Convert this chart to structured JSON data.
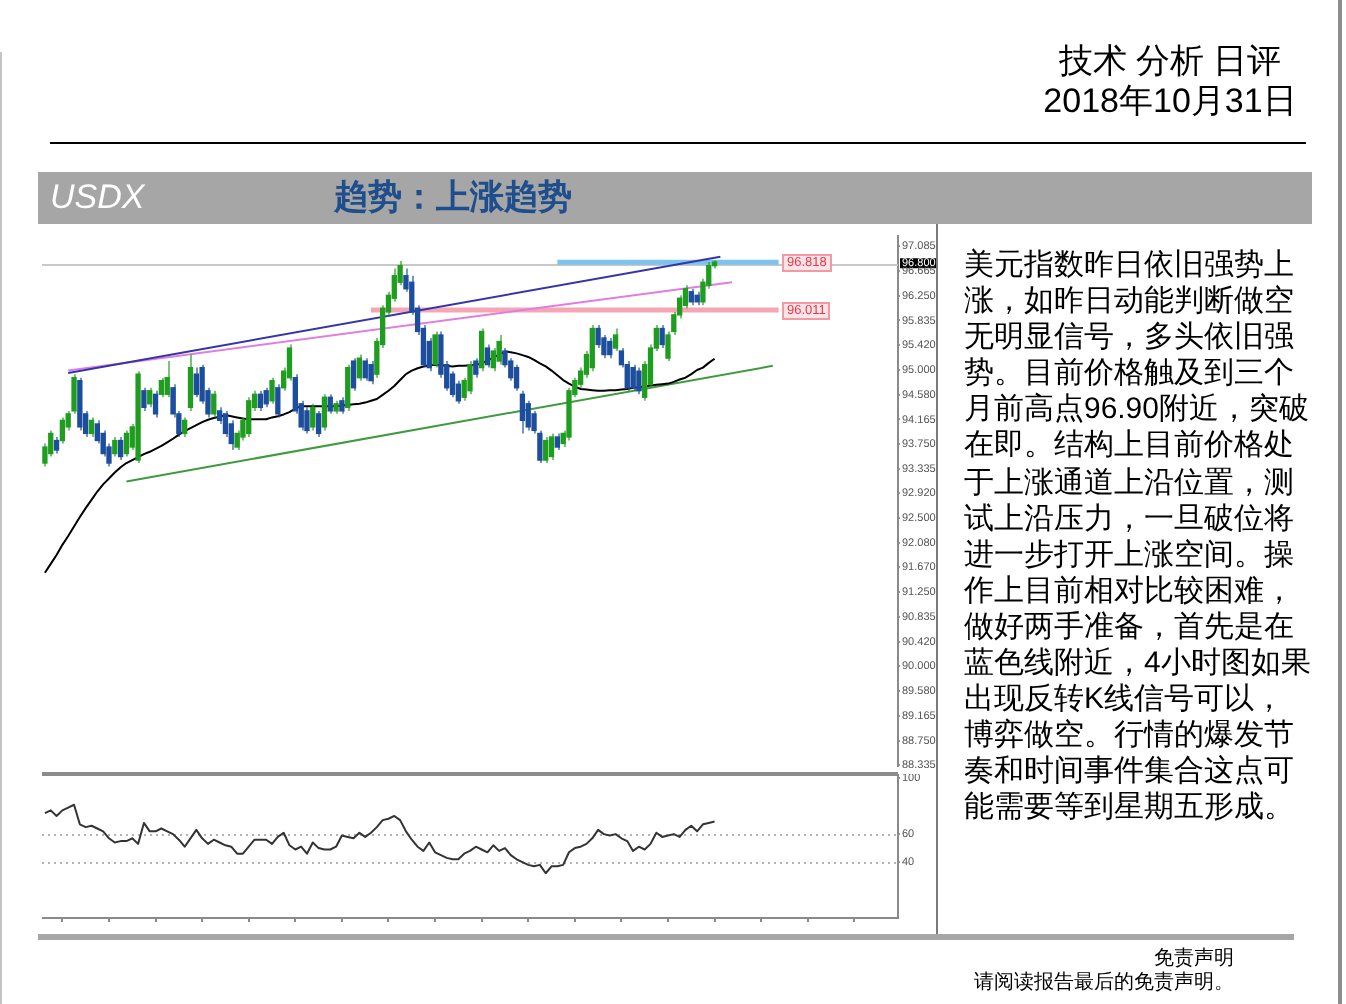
{
  "chart_data": [
    {
      "type": "candlestick",
      "title": "USDX",
      "subtitle": "趋势：上涨趋势",
      "annotations": [
        "技术 分析 日评",
        "2018年10月31日",
        "美元指数昨日依旧强势上涨，如昨日动能判断做空无明显信号，多头依旧强势。目前价格触及到三个月前高点96.90附近，突破在即。结构上目前价格处于上涨通道上沿位置，测试上沿压力，一旦破位将进一步打开上涨空间。操作上目前相对比较困难，做好两手准备，首先是在蓝色线附近，4小时图如果出现反转K线信号可以，博弈做空。行情的爆发节奏和时间事件集合这点可能需要等到星期五形成。",
        "免责声明",
        "请阅读报告最后的免责声明。",
        {
          "text": "96.818",
          "y": 96.818
        },
        {
          "text": "96.011",
          "y": 96.011
        }
      ],
      "categories": [
        null,
        null,
        null,
        null,
        null,
        null,
        null,
        null,
        null,
        null,
        null,
        null,
        null,
        null,
        null,
        null,
        null,
        null,
        null,
        null,
        null,
        null,
        null,
        null,
        null,
        null,
        null,
        null,
        null,
        null,
        null,
        null,
        null,
        null,
        null,
        null,
        null,
        null,
        null,
        null,
        null,
        null,
        null,
        null,
        null,
        null,
        null,
        null,
        null,
        null,
        null,
        null,
        null,
        null,
        null,
        null,
        null,
        null,
        null,
        null,
        null,
        null,
        null,
        null,
        null,
        null,
        null,
        null,
        null,
        null,
        null,
        null,
        null,
        null,
        null,
        null,
        null,
        null,
        null,
        null,
        null,
        null,
        null,
        null,
        null,
        null,
        null,
        null,
        null,
        null,
        null,
        null,
        null,
        null,
        null,
        null,
        null,
        null,
        null,
        null,
        null,
        null,
        null,
        null,
        null,
        null,
        null,
        null,
        null,
        null,
        null,
        null,
        null,
        null,
        null,
        null,
        null,
        null,
        null,
        null,
        null,
        null,
        null,
        null,
        null,
        null,
        null,
        null,
        null,
        null,
        null,
        null,
        null,
        null,
        null,
        null,
        null,
        null,
        null,
        null,
        null,
        null,
        null,
        null,
        null,
        null,
        null
      ],
      "ohlc": [
        [
          93.43,
          93.76,
          93.37,
          93.7
        ],
        [
          93.59,
          93.98,
          93.54,
          93.93
        ],
        [
          93.81,
          93.87,
          93.59,
          93.65
        ],
        [
          93.81,
          94.2,
          93.76,
          94.15
        ],
        [
          94.04,
          94.31,
          93.98,
          94.26
        ],
        [
          94.31,
          94.93,
          94.26,
          94.87
        ],
        [
          94.82,
          94.87,
          93.98,
          94.04
        ],
        [
          94.26,
          94.31,
          93.87,
          93.93
        ],
        [
          93.93,
          94.2,
          93.87,
          94.15
        ],
        [
          94.09,
          94.15,
          93.76,
          93.81
        ],
        [
          93.93,
          93.98,
          93.54,
          93.59
        ],
        [
          93.7,
          93.76,
          93.37,
          93.43
        ],
        [
          93.59,
          93.87,
          93.54,
          93.81
        ],
        [
          93.81,
          93.87,
          93.48,
          93.54
        ],
        [
          93.59,
          93.98,
          93.54,
          93.93
        ],
        [
          93.7,
          94.09,
          93.65,
          94.04
        ],
        [
          93.48,
          94.98,
          93.43,
          94.93
        ],
        [
          94.65,
          94.7,
          94.31,
          94.37
        ],
        [
          94.43,
          94.7,
          94.37,
          94.65
        ],
        [
          94.59,
          94.65,
          94.2,
          94.26
        ],
        [
          94.59,
          94.87,
          94.54,
          94.82
        ],
        [
          94.59,
          95.15,
          94.54,
          94.87
        ],
        [
          94.7,
          94.76,
          94.2,
          94.26
        ],
        [
          94.26,
          94.31,
          93.87,
          93.93
        ],
        [
          93.93,
          94.2,
          93.87,
          94.15
        ],
        [
          94.37,
          95.26,
          94.31,
          95.04
        ],
        [
          94.93,
          95.04,
          94.54,
          94.59
        ],
        [
          95.04,
          95.09,
          94.43,
          94.48
        ],
        [
          94.65,
          94.7,
          94.2,
          94.26
        ],
        [
          94.26,
          94.65,
          94.2,
          94.59
        ],
        [
          94.31,
          94.37,
          94.09,
          94.15
        ],
        [
          94.26,
          94.31,
          93.87,
          93.93
        ],
        [
          94.09,
          94.15,
          93.65,
          93.76
        ],
        [
          93.7,
          93.98,
          93.65,
          93.93
        ],
        [
          93.87,
          94.2,
          93.81,
          94.15
        ],
        [
          93.93,
          94.54,
          93.87,
          94.48
        ],
        [
          94.37,
          94.65,
          94.31,
          94.59
        ],
        [
          94.59,
          94.65,
          94.31,
          94.37
        ],
        [
          94.65,
          94.7,
          94.37,
          94.43
        ],
        [
          94.48,
          94.87,
          94.43,
          94.82
        ],
        [
          94.7,
          94.76,
          94.2,
          94.26
        ],
        [
          94.7,
          95.04,
          94.65,
          94.98
        ],
        [
          94.87,
          95.43,
          94.82,
          95.37
        ],
        [
          94.87,
          94.93,
          94.26,
          94.31
        ],
        [
          94.43,
          94.48,
          93.98,
          94.04
        ],
        [
          94.31,
          94.37,
          93.93,
          93.98
        ],
        [
          94.04,
          94.43,
          93.98,
          94.37
        ],
        [
          94.26,
          94.31,
          93.87,
          93.93
        ],
        [
          94.04,
          94.59,
          93.98,
          94.54
        ],
        [
          94.54,
          94.59,
          94.26,
          94.31
        ],
        [
          94.31,
          94.48,
          94.26,
          94.43
        ],
        [
          94.48,
          94.54,
          94.26,
          94.31
        ],
        [
          94.37,
          95.09,
          94.31,
          95.04
        ],
        [
          95.15,
          95.2,
          94.65,
          94.7
        ],
        [
          94.87,
          95.26,
          94.82,
          95.2
        ],
        [
          95.15,
          95.2,
          94.82,
          94.87
        ],
        [
          95.09,
          95.15,
          94.76,
          94.82
        ],
        [
          94.93,
          95.54,
          94.87,
          95.48
        ],
        [
          95.43,
          96.09,
          95.37,
          96.04
        ],
        [
          95.98,
          96.32,
          95.93,
          96.26
        ],
        [
          96.21,
          96.71,
          96.15,
          96.59
        ],
        [
          96.48,
          96.84,
          96.43,
          96.76
        ],
        [
          96.59,
          96.71,
          96.32,
          96.37
        ],
        [
          96.48,
          96.59,
          95.93,
          95.98
        ],
        [
          96.04,
          96.09,
          95.59,
          95.65
        ],
        [
          95.7,
          95.76,
          95.04,
          95.09
        ],
        [
          95.48,
          95.54,
          94.98,
          95.04
        ],
        [
          95.09,
          95.65,
          95.04,
          95.59
        ],
        [
          95.59,
          95.65,
          94.87,
          94.93
        ],
        [
          95.09,
          95.15,
          94.65,
          94.7
        ],
        [
          94.93,
          94.98,
          94.54,
          94.59
        ],
        [
          94.76,
          94.82,
          94.43,
          94.48
        ],
        [
          94.54,
          94.87,
          94.48,
          94.82
        ],
        [
          94.65,
          95.15,
          94.59,
          95.09
        ],
        [
          95.15,
          95.2,
          94.87,
          94.93
        ],
        [
          95.04,
          95.7,
          94.98,
          95.65
        ],
        [
          95.37,
          95.43,
          95.04,
          95.09
        ],
        [
          95.04,
          95.37,
          94.98,
          95.32
        ],
        [
          95.15,
          95.59,
          95.09,
          95.48
        ],
        [
          95.32,
          95.37,
          95.04,
          95.09
        ],
        [
          95.15,
          95.2,
          94.82,
          94.87
        ],
        [
          95.04,
          95.09,
          94.65,
          94.7
        ],
        [
          94.59,
          94.65,
          93.93,
          94.15
        ],
        [
          94.43,
          94.48,
          93.98,
          94.04
        ],
        [
          94.26,
          94.31,
          93.93,
          93.98
        ],
        [
          93.93,
          93.98,
          93.43,
          93.48
        ],
        [
          93.48,
          93.87,
          93.43,
          93.81
        ],
        [
          93.54,
          93.93,
          93.48,
          93.87
        ],
        [
          93.87,
          93.93,
          93.65,
          93.7
        ],
        [
          93.76,
          93.98,
          93.7,
          93.93
        ],
        [
          93.87,
          94.7,
          93.81,
          94.65
        ],
        [
          94.59,
          94.87,
          94.54,
          94.82
        ],
        [
          94.76,
          95.04,
          94.7,
          94.98
        ],
        [
          94.93,
          95.32,
          94.87,
          95.26
        ],
        [
          95.04,
          95.76,
          94.98,
          95.7
        ],
        [
          95.7,
          95.76,
          95.37,
          95.43
        ],
        [
          95.54,
          95.59,
          95.2,
          95.26
        ],
        [
          95.48,
          95.54,
          95.2,
          95.26
        ],
        [
          95.37,
          95.7,
          95.32,
          95.59
        ],
        [
          95.32,
          95.37,
          95.04,
          95.09
        ],
        [
          95.09,
          95.15,
          94.65,
          94.7
        ],
        [
          95.04,
          95.09,
          94.65,
          94.7
        ],
        [
          94.98,
          95.04,
          94.59,
          94.65
        ],
        [
          94.54,
          95.15,
          94.48,
          95.09
        ],
        [
          94.76,
          95.43,
          94.7,
          95.37
        ],
        [
          95.37,
          95.76,
          95.32,
          95.7
        ],
        [
          95.7,
          95.76,
          95.37,
          95.43
        ],
        [
          95.2,
          95.65,
          95.15,
          95.59
        ],
        [
          95.65,
          95.98,
          95.59,
          95.93
        ],
        [
          95.93,
          96.26,
          95.87,
          96.21
        ],
        [
          96.09,
          96.43,
          96.04,
          96.37
        ],
        [
          96.32,
          96.37,
          96.09,
          96.15
        ],
        [
          96.26,
          96.32,
          96.09,
          96.15
        ],
        [
          96.15,
          96.54,
          96.09,
          96.48
        ],
        [
          96.43,
          96.82,
          96.37,
          96.76
        ],
        [
          96.76,
          96.85,
          96.71,
          96.82
        ],
        null,
        null,
        null,
        null,
        null,
        null,
        null,
        null,
        null,
        null,
        null,
        null,
        null,
        null,
        null,
        null,
        null,
        null,
        null,
        null,
        null,
        null,
        null,
        null,
        null,
        null,
        null,
        null,
        null,
        null,
        null
      ],
      "colors": [
        "#1f9d1f",
        "#1f9d1f",
        "#1d4e9e",
        "#1f9d1f",
        "#1f9d1f",
        "#1f9d1f",
        "#1d4e9e",
        "#1d4e9e",
        "#1f9d1f",
        "#1d4e9e",
        "#1d4e9e",
        "#1d4e9e",
        "#1f9d1f",
        "#1d4e9e",
        "#1f9d1f",
        "#1f9d1f",
        "#1f9d1f",
        "#1d4e9e",
        "#1f9d1f",
        "#1d4e9e",
        "#1f9d1f",
        "#1f9d1f",
        "#1d4e9e",
        "#1d4e9e",
        "#1f9d1f",
        "#1f9d1f",
        "#1d4e9e",
        "#1d4e9e",
        "#1d4e9e",
        "#1f9d1f",
        "#1d4e9e",
        "#1d4e9e",
        "#1d4e9e",
        "#1f9d1f",
        "#1f9d1f",
        "#1f9d1f",
        "#1f9d1f",
        "#1d4e9e",
        "#1d4e9e",
        "#1f9d1f",
        "#1d4e9e",
        "#1f9d1f",
        "#1f9d1f",
        "#1d4e9e",
        "#1d4e9e",
        "#1d4e9e",
        "#1f9d1f",
        "#1d4e9e",
        "#1f9d1f",
        "#1d4e9e",
        "#1f9d1f",
        "#1d4e9e",
        "#1f9d1f",
        "#1d4e9e",
        "#1f9d1f",
        "#1d4e9e",
        "#1d4e9e",
        "#1f9d1f",
        "#1f9d1f",
        "#1f9d1f",
        "#1f9d1f",
        "#1f9d1f",
        "#1d4e9e",
        "#1d4e9e",
        "#1d4e9e",
        "#1d4e9e",
        "#1d4e9e",
        "#1f9d1f",
        "#1d4e9e",
        "#1d4e9e",
        "#1d4e9e",
        "#1d4e9e",
        "#1f9d1f",
        "#1f9d1f",
        "#1d4e9e",
        "#1f9d1f",
        "#1d4e9e",
        "#1f9d1f",
        "#1f9d1f",
        "#1d4e9e",
        "#1d4e9e",
        "#1d4e9e",
        "#1d4e9e",
        "#1d4e9e",
        "#1d4e9e",
        "#1d4e9e",
        "#1f9d1f",
        "#1f9d1f",
        "#1d4e9e",
        "#1f9d1f",
        "#1f9d1f",
        "#1f9d1f",
        "#1f9d1f",
        "#1f9d1f",
        "#1f9d1f",
        "#1d4e9e",
        "#1d4e9e",
        "#1d4e9e",
        "#1f9d1f",
        "#1d4e9e",
        "#1d4e9e",
        "#1d4e9e",
        "#1d4e9e",
        "#1f9d1f",
        "#1f9d1f",
        "#1f9d1f",
        "#1d4e9e",
        "#1f9d1f",
        "#1f9d1f",
        "#1f9d1f",
        "#1f9d1f",
        "#1d4e9e",
        "#1d4e9e",
        "#1f9d1f",
        "#1f9d1f",
        "#1f9d1f",
        null,
        null,
        null,
        null,
        null,
        null,
        null,
        null,
        null,
        null,
        null,
        null,
        null,
        null,
        null,
        null,
        null,
        null,
        null,
        null,
        null,
        null,
        null,
        null,
        null,
        null,
        null,
        null,
        null,
        null,
        null
      ],
      "series": [
        {
          "type": "line",
          "color": "#000000",
          "values": [
            91.58,
            91.73,
            91.88,
            92.05,
            92.2,
            92.36,
            92.52,
            92.67,
            92.81,
            92.95,
            93.07,
            93.17,
            93.27,
            93.36,
            93.43,
            93.48,
            93.53,
            93.58,
            93.62,
            93.67,
            93.72,
            93.78,
            93.84,
            93.91,
            93.97,
            94.02,
            94.07,
            94.12,
            94.16,
            94.19,
            94.21,
            94.24,
            94.22,
            94.2,
            94.18,
            94.17,
            94.17,
            94.17,
            94.17,
            94.2,
            94.22,
            94.25,
            94.29,
            94.35,
            94.39,
            94.39,
            94.39,
            94.39,
            94.39,
            94.39,
            94.39,
            94.4,
            94.41,
            94.42,
            94.43,
            94.45,
            94.48,
            94.51,
            94.58,
            94.65,
            94.73,
            94.83,
            94.93,
            94.99,
            95.03,
            95.06,
            95.08,
            95.09,
            95.08,
            95.07,
            95.06,
            95.07,
            95.07,
            95.08,
            95.09,
            95.11,
            95.16,
            95.21,
            95.26,
            95.31,
            95.3,
            95.28,
            95.25,
            95.22,
            95.17,
            95.11,
            95.06,
            94.99,
            94.91,
            94.83,
            94.77,
            94.72,
            94.68,
            94.67,
            94.66,
            94.65,
            94.65,
            94.66,
            94.66,
            94.67,
            94.68,
            94.7,
            94.71,
            94.72,
            94.74,
            94.75,
            94.76,
            94.77,
            94.8,
            94.84,
            94.87,
            94.93,
            95.0,
            95.04,
            95.12,
            95.19,
            null,
            null,
            null,
            null,
            null,
            null,
            null,
            null,
            null,
            null,
            null,
            null,
            null,
            null,
            null,
            null,
            null,
            null,
            null,
            null,
            null,
            null,
            null,
            null,
            null,
            null,
            null,
            null,
            null,
            null,
            null
          ]
        },
        {
          "type": "line",
          "color": "#3535a8",
          "values": [
            null,
            null,
            null,
            null,
            94.95,
            null,
            null,
            null,
            null,
            null,
            null,
            null,
            null,
            null,
            null,
            null,
            null,
            null,
            null,
            null,
            null,
            null,
            null,
            null,
            null,
            null,
            null,
            null,
            null,
            null,
            null,
            null,
            null,
            null,
            null,
            null,
            null,
            null,
            null,
            null,
            null,
            null,
            null,
            null,
            null,
            null,
            null,
            null,
            null,
            null,
            null,
            null,
            null,
            null,
            null,
            null,
            null,
            null,
            null,
            null,
            null,
            null,
            null,
            null,
            null,
            null,
            null,
            null,
            null,
            null,
            null,
            null,
            null,
            null,
            null,
            null,
            null,
            null,
            null,
            null,
            null,
            null,
            null,
            null,
            null,
            null,
            null,
            null,
            null,
            null,
            null,
            null,
            null,
            null,
            null,
            null,
            null,
            null,
            null,
            null,
            null,
            null,
            null,
            null,
            null,
            null,
            null,
            null,
            null,
            null,
            null,
            null,
            null,
            null,
            null,
            null,
            96.91,
            null,
            null,
            null,
            null,
            null,
            null,
            null,
            null,
            null,
            null,
            null,
            null,
            null,
            null,
            null,
            null,
            null,
            null,
            null,
            null,
            null,
            null,
            null,
            null,
            null,
            null,
            null,
            null,
            null,
            null
          ]
        },
        {
          "type": "line",
          "color": "#e07ee0",
          "values": [
            null,
            null,
            null,
            null,
            94.99,
            null,
            null,
            null,
            null,
            null,
            null,
            null,
            null,
            null,
            null,
            null,
            null,
            null,
            null,
            null,
            null,
            null,
            null,
            null,
            null,
            null,
            null,
            null,
            null,
            null,
            null,
            null,
            null,
            null,
            null,
            null,
            null,
            null,
            null,
            null,
            null,
            null,
            null,
            null,
            null,
            null,
            null,
            null,
            null,
            null,
            null,
            null,
            null,
            null,
            null,
            null,
            null,
            null,
            null,
            null,
            null,
            null,
            null,
            null,
            null,
            null,
            null,
            null,
            null,
            null,
            null,
            null,
            null,
            null,
            null,
            null,
            null,
            null,
            null,
            null,
            null,
            null,
            null,
            null,
            null,
            null,
            null,
            null,
            null,
            null,
            null,
            null,
            null,
            null,
            null,
            null,
            null,
            null,
            null,
            null,
            null,
            null,
            null,
            null,
            null,
            null,
            null,
            null,
            null,
            null,
            null,
            null,
            null,
            null,
            null,
            null,
            null,
            null,
            96.48,
            null,
            null,
            null,
            null,
            null,
            null,
            null,
            null,
            null,
            null,
            null,
            null,
            null,
            null,
            null,
            null,
            null,
            null,
            null,
            null,
            null,
            null,
            null,
            null,
            null,
            null,
            null,
            null
          ]
        },
        {
          "type": "line",
          "color": "#3d9b3d",
          "values": [
            null,
            null,
            null,
            null,
            null,
            null,
            null,
            null,
            null,
            null,
            null,
            null,
            null,
            null,
            93.12,
            null,
            null,
            null,
            null,
            null,
            null,
            null,
            null,
            null,
            null,
            null,
            null,
            null,
            null,
            null,
            null,
            null,
            null,
            null,
            null,
            null,
            null,
            null,
            null,
            null,
            null,
            null,
            null,
            null,
            null,
            null,
            null,
            null,
            null,
            null,
            null,
            null,
            null,
            null,
            null,
            null,
            null,
            null,
            null,
            null,
            null,
            null,
            null,
            null,
            null,
            null,
            null,
            null,
            null,
            null,
            null,
            null,
            null,
            null,
            null,
            null,
            null,
            null,
            null,
            null,
            null,
            null,
            null,
            null,
            null,
            null,
            null,
            null,
            null,
            null,
            null,
            null,
            null,
            null,
            null,
            null,
            null,
            null,
            null,
            null,
            null,
            null,
            null,
            null,
            null,
            null,
            null,
            null,
            null,
            null,
            null,
            null,
            null,
            null,
            null,
            null,
            null,
            null,
            null,
            null,
            null,
            null,
            null,
            null,
            null,
            95.07,
            null,
            null,
            null,
            null,
            null,
            null,
            null,
            null,
            null,
            null,
            null,
            null,
            null,
            null,
            null,
            null,
            null,
            null,
            null,
            null,
            null
          ]
        },
        {
          "type": "line",
          "color": "#7cc3ef",
          "values": [
            null,
            null,
            null,
            null,
            null,
            null,
            null,
            null,
            null,
            null,
            null,
            null,
            null,
            null,
            null,
            null,
            null,
            null,
            null,
            null,
            null,
            null,
            null,
            null,
            null,
            null,
            null,
            null,
            null,
            null,
            null,
            null,
            null,
            null,
            null,
            null,
            null,
            null,
            null,
            null,
            null,
            null,
            null,
            null,
            null,
            null,
            null,
            null,
            null,
            null,
            null,
            null,
            null,
            null,
            null,
            null,
            null,
            null,
            null,
            null,
            null,
            null,
            null,
            null,
            null,
            null,
            null,
            null,
            null,
            null,
            null,
            null,
            null,
            null,
            null,
            null,
            null,
            null,
            null,
            null,
            null,
            null,
            null,
            null,
            null,
            null,
            null,
            null,
            96.818,
            null,
            null,
            null,
            null,
            null,
            null,
            null,
            null,
            null,
            null,
            null,
            null,
            null,
            null,
            null,
            null,
            null,
            null,
            null,
            null,
            null,
            null,
            null,
            null,
            null,
            null,
            null,
            null,
            null,
            null,
            null,
            null,
            null,
            null,
            null,
            null,
            null,
            96.818,
            null,
            null,
            null,
            null,
            null,
            null,
            null,
            null,
            null,
            null,
            null,
            null,
            null,
            null,
            null,
            null,
            null,
            null,
            null,
            null
          ]
        },
        {
          "type": "line",
          "color": "#f5a5b4",
          "values": [
            null,
            null,
            null,
            null,
            null,
            null,
            null,
            null,
            null,
            null,
            null,
            null,
            null,
            null,
            null,
            null,
            null,
            null,
            null,
            null,
            null,
            null,
            null,
            null,
            null,
            null,
            null,
            null,
            null,
            null,
            null,
            null,
            null,
            null,
            null,
            null,
            null,
            null,
            null,
            null,
            null,
            null,
            null,
            null,
            null,
            null,
            null,
            null,
            null,
            null,
            null,
            null,
            null,
            null,
            null,
            null,
            96.011,
            null,
            null,
            null,
            null,
            null,
            null,
            null,
            null,
            null,
            null,
            null,
            null,
            null,
            null,
            null,
            null,
            null,
            null,
            null,
            null,
            null,
            null,
            null,
            null,
            null,
            null,
            null,
            null,
            null,
            null,
            null,
            null,
            null,
            null,
            null,
            null,
            null,
            null,
            null,
            null,
            null,
            null,
            null,
            null,
            null,
            null,
            null,
            null,
            null,
            null,
            null,
            null,
            null,
            null,
            null,
            null,
            null,
            null,
            null,
            null,
            null,
            null,
            null,
            null,
            null,
            null,
            null,
            null,
            null,
            96.011,
            null,
            null,
            null,
            null,
            null,
            null,
            null,
            null,
            null,
            null,
            null,
            null,
            null,
            null,
            null,
            null,
            null,
            null,
            null,
            null
          ]
        }
      ],
      "ylim": [
        88.32,
        97.26
      ],
      "yticks": [
        {
          "value": 88.335,
          "label": "88.335"
        },
        {
          "value": 88.75,
          "label": "88.750"
        },
        {
          "value": 89.165,
          "label": "89.165"
        },
        {
          "value": 89.58,
          "label": "89.580"
        },
        {
          "value": 90,
          "label": "90.000"
        },
        {
          "value": 90.42,
          "label": "90.420"
        },
        {
          "value": 90.835,
          "label": "90.835"
        },
        {
          "value": 91.25,
          "label": "91.250"
        },
        {
          "value": 91.67,
          "label": "91.670"
        },
        {
          "value": 92.08,
          "label": "92.080"
        },
        {
          "value": 92.5,
          "label": "92.500"
        },
        {
          "value": 92.92,
          "label": "92.920"
        },
        {
          "value": 93.335,
          "label": "93.335"
        },
        {
          "value": 93.75,
          "label": "93.750"
        },
        {
          "value": 94.165,
          "label": "94.165"
        },
        {
          "value": 94.58,
          "label": "94.580"
        },
        {
          "value": 95,
          "label": "95.000"
        },
        {
          "value": 95.42,
          "label": "95.420"
        },
        {
          "value": 95.835,
          "label": "95.835"
        },
        {
          "value": 96.25,
          "label": "96.250"
        },
        {
          "value": 96.665,
          "label": "96.665"
        },
        {
          "value": 97.085,
          "label": "97.085"
        }
      ],
      "tick_labels": "y",
      "ref_lines": [
        {
          "axis": "y",
          "value": 96.8,
          "label": "96.800",
          "color": "#c8c8c8"
        }
      ]
    },
    {
      "type": "line",
      "categories": [
        null,
        null,
        null,
        null,
        null,
        null,
        null,
        null,
        null,
        null,
        null,
        null,
        null,
        null,
        null,
        null,
        null,
        null,
        null,
        null,
        null,
        null,
        null,
        null,
        null,
        null,
        null,
        null,
        null,
        null,
        null,
        null,
        null,
        null,
        null,
        null,
        null,
        null,
        null,
        null,
        null,
        null,
        null,
        null,
        null,
        null,
        null,
        null,
        null,
        null,
        null,
        null,
        null,
        null,
        null,
        null,
        null,
        null,
        null,
        null,
        null,
        null,
        null,
        null,
        null,
        null,
        null,
        null,
        null,
        null,
        null,
        null,
        null,
        null,
        null,
        null,
        null,
        null,
        null,
        null,
        null,
        null,
        null,
        null,
        null,
        null,
        null,
        null,
        null,
        null,
        null,
        null,
        null,
        null,
        null,
        null,
        null,
        null,
        null,
        null,
        null,
        null,
        null,
        null,
        null,
        null,
        null,
        null,
        null,
        null,
        null,
        null,
        null,
        null,
        null,
        null,
        null,
        null,
        null,
        null,
        null,
        null,
        null,
        null,
        null,
        null,
        null,
        null,
        null,
        null,
        null,
        null,
        null,
        null,
        null,
        null,
        null,
        null,
        null,
        null,
        null,
        null,
        null,
        null,
        null,
        null,
        null
      ],
      "values": [
        75,
        77,
        73,
        77,
        79,
        81,
        67,
        65,
        66,
        64,
        62,
        57,
        54,
        55,
        55,
        57,
        53,
        68,
        62,
        62,
        64,
        62,
        60,
        56,
        51,
        57,
        63,
        57,
        53,
        56,
        54,
        52,
        51,
        46,
        46,
        51,
        56,
        56,
        56,
        53,
        58,
        61,
        52,
        49,
        51,
        46,
        54,
        50,
        49,
        49,
        51,
        59,
        58,
        57,
        61,
        58,
        61,
        65,
        70,
        71,
        73,
        70,
        62,
        56,
        51,
        48,
        54,
        47,
        45,
        43,
        42,
        42,
        46,
        48,
        51,
        49,
        47,
        52,
        48,
        50,
        45,
        42,
        40,
        38,
        37,
        38,
        32,
        37,
        37,
        38,
        47,
        50,
        51,
        53,
        57,
        63,
        60,
        59,
        60,
        57,
        55,
        48,
        51,
        49,
        53,
        61,
        58,
        59,
        60,
        58,
        63,
        66,
        62,
        67,
        68,
        69,
        null,
        null,
        null,
        null,
        null,
        null,
        null,
        null,
        null,
        null,
        null,
        null,
        null,
        null,
        null,
        null,
        null,
        null,
        null,
        null,
        null,
        null,
        null,
        null,
        null,
        null,
        null,
        null,
        null,
        null,
        null
      ],
      "color": "#333333",
      "ylim": [
        0,
        103
      ],
      "yticks": [
        100,
        60,
        40
      ],
      "tick_labels": "y",
      "ref_lines": [
        {
          "axis": "y",
          "value": 60,
          "color": "#b4b4b4",
          "line_style": "dotted"
        },
        {
          "axis": "y",
          "value": 40,
          "color": "#b4b4b4",
          "line_style": "dotted"
        }
      ]
    }
  ]
}
